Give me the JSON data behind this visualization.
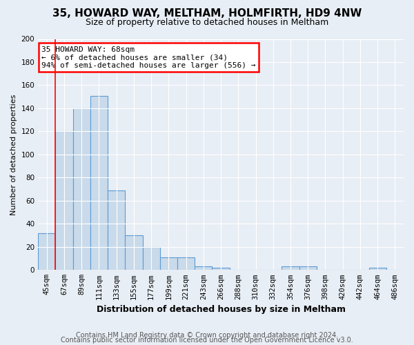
{
  "title": "35, HOWARD WAY, MELTHAM, HOLMFIRTH, HD9 4NW",
  "subtitle": "Size of property relative to detached houses in Meltham",
  "xlabel": "Distribution of detached houses by size in Meltham",
  "ylabel": "Number of detached properties",
  "footer1": "Contains HM Land Registry data © Crown copyright and database right 2024.",
  "footer2": "Contains public sector information licensed under the Open Government Licence v3.0.",
  "categories": [
    "45sqm",
    "67sqm",
    "89sqm",
    "111sqm",
    "133sqm",
    "155sqm",
    "177sqm",
    "199sqm",
    "221sqm",
    "243sqm",
    "266sqm",
    "288sqm",
    "310sqm",
    "332sqm",
    "354sqm",
    "376sqm",
    "398sqm",
    "420sqm",
    "442sqm",
    "464sqm",
    "486sqm"
  ],
  "values": [
    32,
    120,
    140,
    151,
    69,
    30,
    20,
    11,
    11,
    3,
    2,
    0,
    0,
    0,
    3,
    3,
    0,
    0,
    0,
    2,
    0
  ],
  "bar_color": "#c9daea",
  "bar_edge_color": "#5b9bd5",
  "bar_linewidth": 0.8,
  "red_line_x": 0.5,
  "annotation_text": "35 HOWARD WAY: 68sqm\n← 6% of detached houses are smaller (34)\n94% of semi-detached houses are larger (556) →",
  "annotation_box_color": "white",
  "annotation_box_edge": "red",
  "ylim": [
    0,
    200
  ],
  "yticks": [
    0,
    20,
    40,
    60,
    80,
    100,
    120,
    140,
    160,
    180,
    200
  ],
  "bg_color": "#e8eef5",
  "plot_bg_color": "#e8eef5",
  "title_fontsize": 11,
  "subtitle_fontsize": 9,
  "xlabel_fontsize": 9,
  "ylabel_fontsize": 8,
  "tick_fontsize": 7.5,
  "footer_fontsize": 7,
  "ann_fontsize": 8
}
